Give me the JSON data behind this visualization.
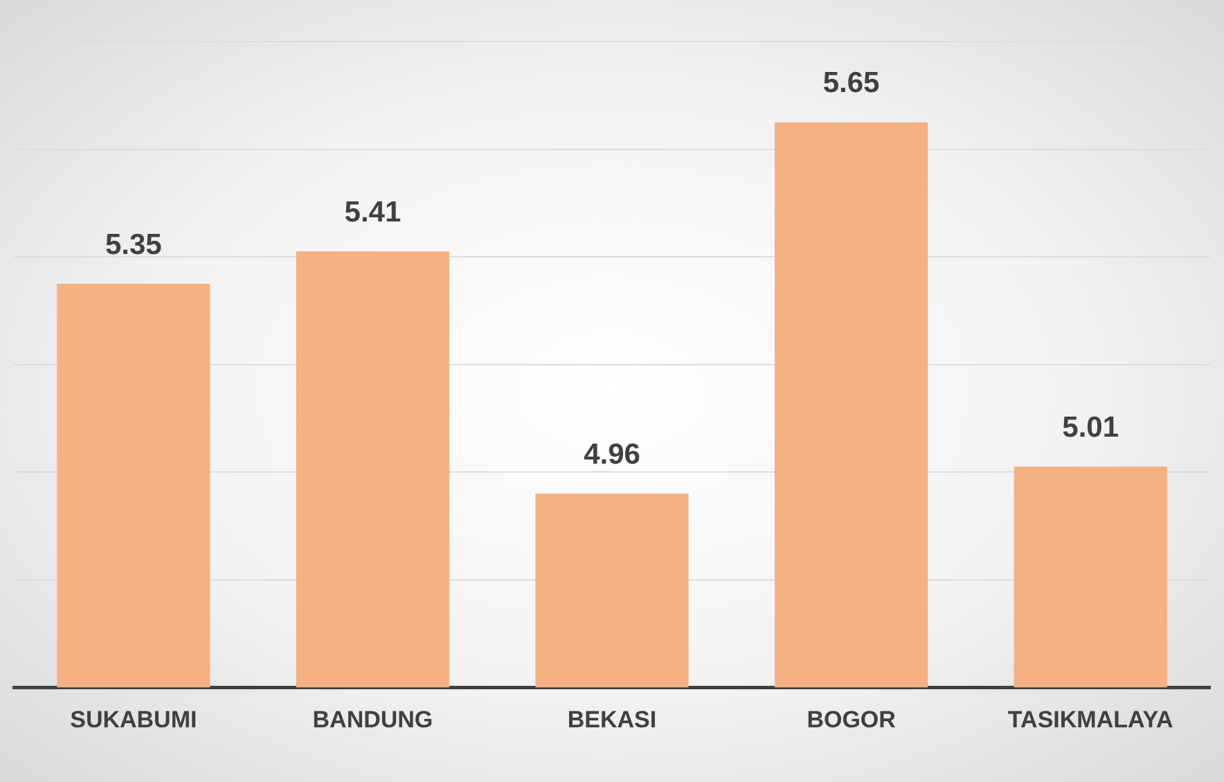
{
  "chart_data": {
    "type": "bar",
    "categories": [
      "SUKABUMI",
      "BANDUNG",
      "BEKASI",
      "BOGOR",
      "TASIKMALAYA"
    ],
    "values": [
      5.35,
      5.41,
      4.96,
      5.65,
      5.01
    ],
    "color": "#f4b183",
    "ylim": [
      4.6,
      5.8
    ],
    "grid": "y",
    "tick_labels": "x",
    "data_labels": true
  }
}
